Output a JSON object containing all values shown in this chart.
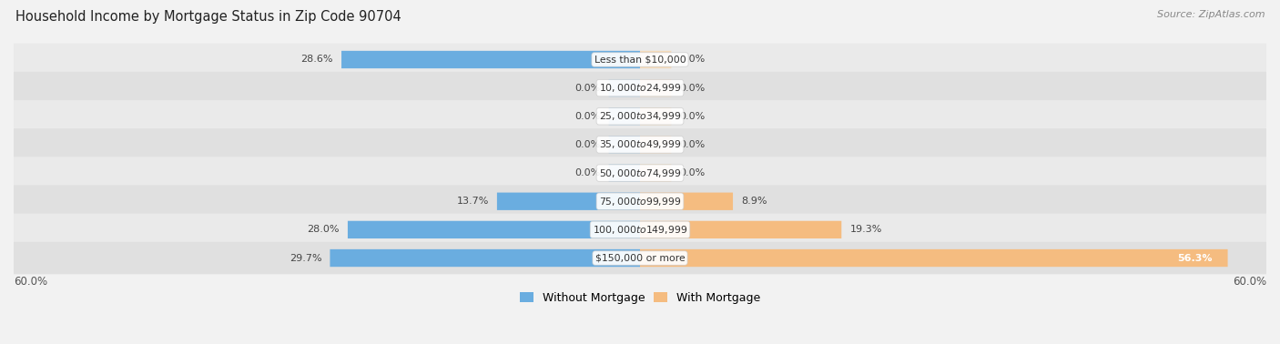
{
  "title": "Household Income by Mortgage Status in Zip Code 90704",
  "source": "Source: ZipAtlas.com",
  "categories": [
    "Less than $10,000",
    "$10,000 to $24,999",
    "$25,000 to $34,999",
    "$35,000 to $49,999",
    "$50,000 to $74,999",
    "$75,000 to $99,999",
    "$100,000 to $149,999",
    "$150,000 or more"
  ],
  "without_mortgage": [
    28.6,
    0.0,
    0.0,
    0.0,
    0.0,
    13.7,
    28.0,
    29.7
  ],
  "with_mortgage": [
    0.0,
    0.0,
    0.0,
    0.0,
    0.0,
    8.9,
    19.3,
    56.3
  ],
  "color_without": "#6aade0",
  "color_with": "#f5bc80",
  "color_without_zero": "#a8cce8",
  "color_with_zero": "#f5dab8",
  "axis_max": 60.0,
  "legend_labels": [
    "Without Mortgage",
    "With Mortgage"
  ],
  "bg_fig": "#f2f2f2",
  "row_bg_odd": "#eaeaea",
  "row_bg_even": "#e0e0e0",
  "zero_stub": 3.0
}
